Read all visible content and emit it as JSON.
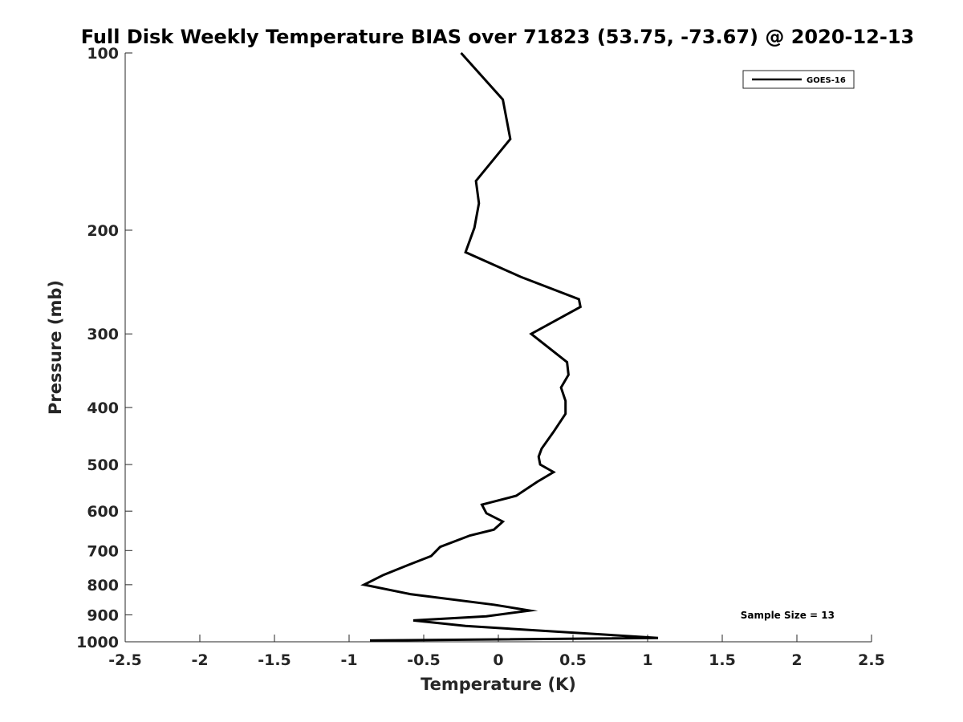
{
  "chart_data": {
    "type": "line",
    "title": "Full Disk Weekly Temperature BIAS over 71823 (53.75, -73.67) @ 2020-12-13",
    "xlabel": "Temperature (K)",
    "ylabel": "Pressure (mb)",
    "xlim": [
      -2.5,
      2.5
    ],
    "ylim": [
      100,
      1000
    ],
    "y_scale": "log",
    "y_reversed": true,
    "x_ticks": [
      "-2.5",
      "-2",
      "-1.5",
      "-1",
      "-0.5",
      "0",
      "0.5",
      "1",
      "1.5",
      "2",
      "2.5"
    ],
    "y_ticks": [
      "100",
      "200",
      "300",
      "400",
      "500",
      "600",
      "700",
      "800",
      "900",
      "1000"
    ],
    "grid": false,
    "legend_position": "top-right",
    "annotation": "Sample Size = 13",
    "series": [
      {
        "name": "GOES-16",
        "color": "#000000",
        "x": [
          -0.25,
          0.03,
          0.08,
          -0.15,
          -0.13,
          -0.16,
          -0.22,
          0.15,
          0.54,
          0.55,
          0.22,
          0.46,
          0.47,
          0.42,
          0.45,
          0.45,
          0.37,
          0.29,
          0.27,
          0.28,
          0.37,
          0.26,
          0.12,
          -0.11,
          -0.08,
          0.03,
          -0.03,
          -0.19,
          -0.39,
          -0.45,
          -0.6,
          -0.77,
          -0.9,
          -0.59,
          -0.03,
          0.21,
          -0.08,
          -0.57,
          -0.22,
          1.07,
          -0.86
        ],
        "y": [
          100,
          120,
          140,
          165,
          180,
          198,
          218,
          240,
          262,
          270,
          300,
          335,
          352,
          370,
          390,
          410,
          440,
          470,
          485,
          500,
          515,
          535,
          565,
          585,
          605,
          625,
          645,
          660,
          690,
          715,
          740,
          770,
          800,
          830,
          865,
          885,
          905,
          920,
          940,
          985,
          995
        ]
      }
    ]
  }
}
